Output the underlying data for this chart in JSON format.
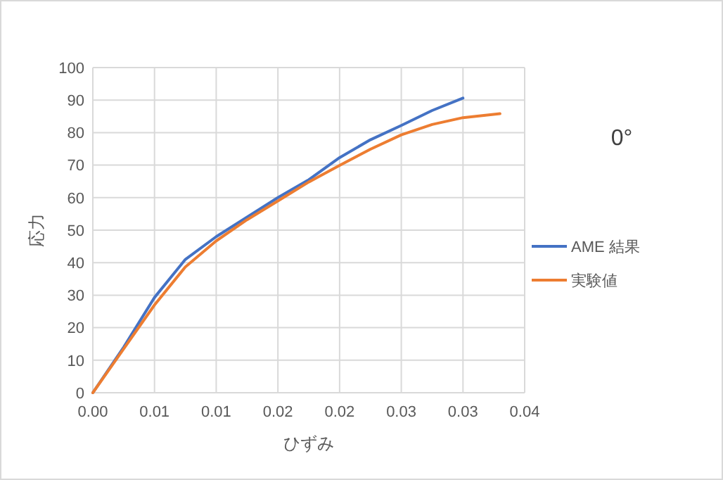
{
  "chart_data": {
    "type": "line",
    "title": "0°",
    "xlabel": "ひずみ",
    "ylabel": "応力",
    "xlim": [
      0,
      0.035
    ],
    "xticks": [
      {
        "value": 0,
        "label": "0.00"
      },
      {
        "value": 0.005,
        "label": "0.01"
      },
      {
        "value": 0.01,
        "label": "0.01"
      },
      {
        "value": 0.015,
        "label": "0.02"
      },
      {
        "value": 0.02,
        "label": "0.02"
      },
      {
        "value": 0.025,
        "label": "0.03"
      },
      {
        "value": 0.03,
        "label": "0.03"
      },
      {
        "value": 0.035,
        "label": "0.04"
      }
    ],
    "ylim": [
      0,
      100
    ],
    "yticks": [
      0,
      10,
      20,
      30,
      40,
      50,
      60,
      70,
      80,
      90,
      100
    ],
    "grid": true,
    "legend": "right",
    "marker": "none",
    "line_style": "solid",
    "series": [
      {
        "name": "AME 結果",
        "color": "#4472c4",
        "x": [
          0,
          0.0025,
          0.005,
          0.0075,
          0.01,
          0.0125,
          0.015,
          0.0175,
          0.02,
          0.0225,
          0.025,
          0.0275,
          0.03
        ],
        "values": [
          0,
          14,
          29.3,
          41,
          48,
          54,
          60,
          65.5,
          72.3,
          77.8,
          82.2,
          86.8,
          90.6
        ]
      },
      {
        "name": "実験値",
        "color": "#ed7d31",
        "x": [
          0,
          0.0025,
          0.005,
          0.0075,
          0.01,
          0.0125,
          0.015,
          0.0175,
          0.02,
          0.0225,
          0.025,
          0.0275,
          0.03,
          0.033
        ],
        "values": [
          0,
          13.5,
          27,
          38.7,
          46.7,
          53.2,
          59,
          64.8,
          69.9,
          74.9,
          79.3,
          82.5,
          84.6,
          85.8
        ]
      }
    ]
  }
}
